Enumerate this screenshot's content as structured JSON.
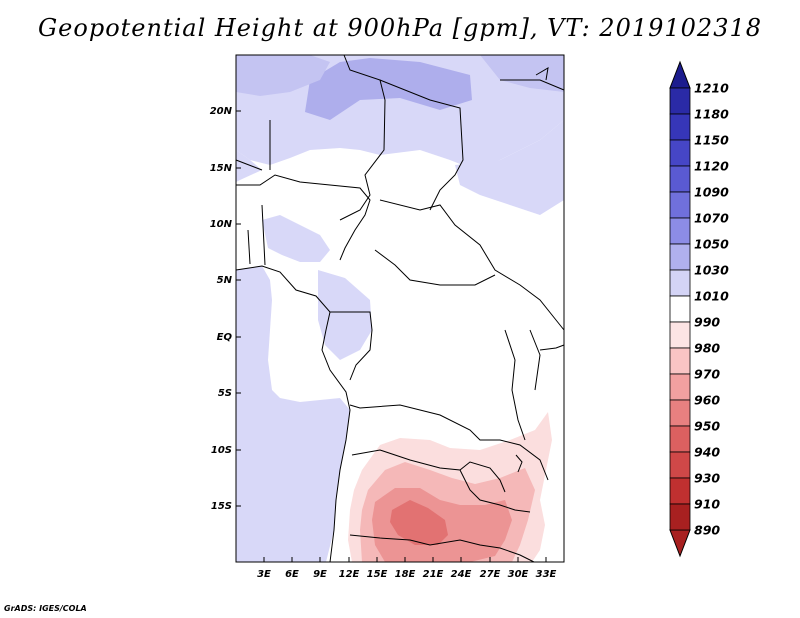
{
  "title": "Geopotential Height at 900hPa [gpm], VT: 2019102318",
  "credit": "GrADS: IGES/COLA",
  "map": {
    "lat_labels": [
      "20N",
      "15N",
      "10N",
      "5N",
      "EQ",
      "5S",
      "10S",
      "15S"
    ],
    "lon_labels": [
      "3E",
      "6E",
      "9E",
      "12E",
      "15E",
      "18E",
      "21E",
      "24E",
      "27E",
      "30E",
      "33E"
    ]
  },
  "colorbar": {
    "levels": [
      "1210",
      "1180",
      "1150",
      "1120",
      "1090",
      "1070",
      "1050",
      "1030",
      "1010",
      "990",
      "980",
      "970",
      "960",
      "950",
      "940",
      "930",
      "910",
      "890"
    ],
    "colors": [
      "#1c1c8e",
      "#2a2aa6",
      "#3636b8",
      "#4646c6",
      "#5a5ad2",
      "#7070dc",
      "#8c8ce6",
      "#b0b0ee",
      "#d4d4f6",
      "#ffffff",
      "#fde4e4",
      "#f9c4c4",
      "#f2a0a0",
      "#e88080",
      "#dc6060",
      "#d04848",
      "#c03030",
      "#a82020"
    ]
  },
  "field_colors": {
    "ocean": "#d8d8f8",
    "high_1030": "#c4c4f2",
    "high_1050": "#aeaeec",
    "low_980": "#fbdede",
    "low_970": "#f5b8b8",
    "low_960": "#ec9494",
    "low_950": "#e27272"
  }
}
